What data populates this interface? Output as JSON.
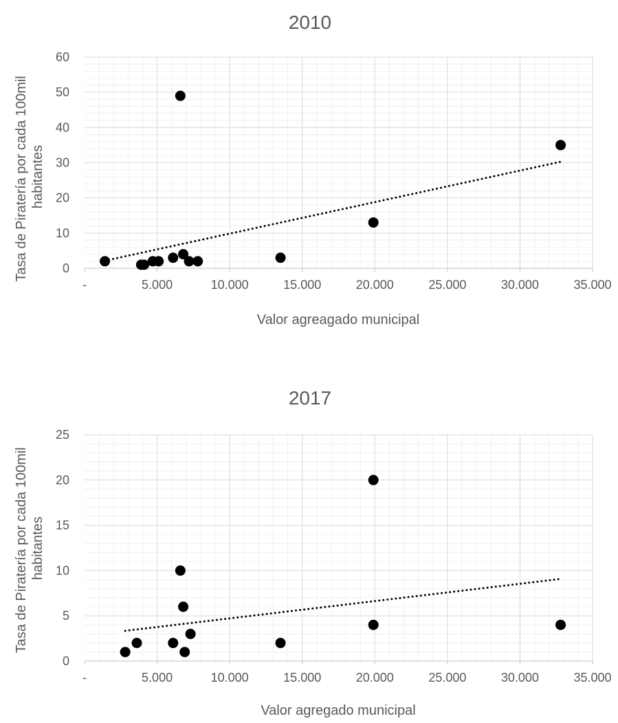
{
  "chart_data": [
    {
      "type": "scatter",
      "title": "2010",
      "xlabel": "Valor agreagado municipal",
      "ylabel_lines": [
        "Tasa de Piratería por cada 100mil",
        "habitantes"
      ],
      "xlim": [
        0,
        35000
      ],
      "ylim": [
        0,
        60
      ],
      "x_ticks": [
        0,
        5000,
        10000,
        15000,
        20000,
        25000,
        30000,
        35000
      ],
      "x_tick_labels": [
        "-",
        "5.000",
        "10.000",
        "15.000",
        "20.000",
        "25.000",
        "30.000",
        "35.000"
      ],
      "y_ticks": [
        0,
        10,
        20,
        30,
        40,
        50,
        60
      ],
      "y_tick_labels": [
        "0",
        "10",
        "20",
        "30",
        "40",
        "50",
        "60"
      ],
      "grid": true,
      "trendline": "linear, dotted",
      "point_color": "#000000",
      "points": [
        {
          "x": 1400,
          "y": 2
        },
        {
          "x": 3900,
          "y": 1
        },
        {
          "x": 4100,
          "y": 1
        },
        {
          "x": 4700,
          "y": 2
        },
        {
          "x": 5100,
          "y": 2
        },
        {
          "x": 6100,
          "y": 3
        },
        {
          "x": 6600,
          "y": 49
        },
        {
          "x": 6800,
          "y": 4
        },
        {
          "x": 7200,
          "y": 2
        },
        {
          "x": 7800,
          "y": 2
        },
        {
          "x": 13500,
          "y": 3
        },
        {
          "x": 19900,
          "y": 13
        },
        {
          "x": 32800,
          "y": 35
        }
      ]
    },
    {
      "type": "scatter",
      "title": "2017",
      "xlabel": "Valor agregado municipal",
      "ylabel_lines": [
        "Tasa de Piratería por cada 100mil",
        "habitantes"
      ],
      "xlim": [
        0,
        35000
      ],
      "ylim": [
        0,
        25
      ],
      "x_ticks": [
        0,
        5000,
        10000,
        15000,
        20000,
        25000,
        30000,
        35000
      ],
      "x_tick_labels": [
        "-",
        "5.000",
        "10.000",
        "15.000",
        "20.000",
        "25.000",
        "30.000",
        "35.000"
      ],
      "y_ticks": [
        0,
        5,
        10,
        15,
        20,
        25
      ],
      "y_tick_labels": [
        "0",
        "5",
        "10",
        "15",
        "20",
        "25"
      ],
      "grid": true,
      "trendline": "linear, dotted",
      "point_color": "#000000",
      "points": [
        {
          "x": 2800,
          "y": 1
        },
        {
          "x": 3600,
          "y": 2
        },
        {
          "x": 6100,
          "y": 2
        },
        {
          "x": 6600,
          "y": 10
        },
        {
          "x": 6800,
          "y": 6
        },
        {
          "x": 6900,
          "y": 1
        },
        {
          "x": 7300,
          "y": 3
        },
        {
          "x": 13500,
          "y": 2
        },
        {
          "x": 19900,
          "y": 20
        },
        {
          "x": 19900,
          "y": 4
        },
        {
          "x": 32800,
          "y": 4
        }
      ]
    }
  ]
}
